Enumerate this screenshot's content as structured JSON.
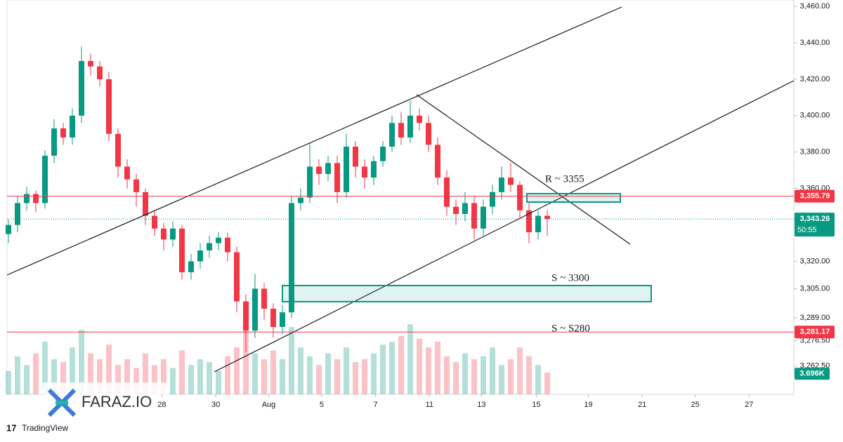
{
  "chart_data": {
    "type": "candlestick",
    "xlim": [
      0,
      86
    ],
    "xticks": [
      {
        "value": 16.8,
        "label": "28"
      },
      {
        "value": 22.7,
        "label": "30"
      },
      {
        "value": 28.5,
        "label": "Aug"
      },
      {
        "value": 34.3,
        "label": "5"
      },
      {
        "value": 40.2,
        "label": "7"
      },
      {
        "value": 46.1,
        "label": "11"
      },
      {
        "value": 51.8,
        "label": "13"
      },
      {
        "value": 57.8,
        "label": "15"
      },
      {
        "value": 63.5,
        "label": "19"
      },
      {
        "value": 69.4,
        "label": "21"
      },
      {
        "value": 75.2,
        "label": "25"
      },
      {
        "value": 81.1,
        "label": "27"
      }
    ],
    "ylim": [
      3247,
      3463.5
    ],
    "yticks": [
      {
        "value": 3460,
        "label": "3,460.00"
      },
      {
        "value": 3440,
        "label": "3,440.00"
      },
      {
        "value": 3420,
        "label": "3,420.00"
      },
      {
        "value": 3400,
        "label": "3,400.00"
      },
      {
        "value": 3380,
        "label": "3,380.00"
      },
      {
        "value": 3360,
        "label": "3,360.00"
      },
      {
        "value": 3320,
        "label": "3,320.00"
      },
      {
        "value": 3305,
        "label": "3,305.00"
      },
      {
        "value": 3289,
        "label": "3,289.00"
      },
      {
        "value": 3276.5,
        "label": "3,276.50"
      },
      {
        "value": 3262.5,
        "label": "3,262.50"
      }
    ],
    "up_color": "#089981",
    "down_color": "#f23645",
    "open": [
      3335,
      3340,
      3352,
      3357,
      3352,
      3378,
      3393,
      3388,
      3400,
      3430,
      3427,
      3420,
      3390,
      3372,
      3365,
      3358,
      3345,
      3338,
      3332,
      3338,
      3314,
      3320,
      3326,
      3330,
      3333,
      3325,
      3298,
      3282,
      3305,
      3294,
      3284,
      3292,
      3352,
      3355,
      3372,
      3368,
      3374,
      3358,
      3383,
      3372,
      3366,
      3375,
      3383,
      3396,
      3388,
      3400,
      3396,
      3384,
      3366,
      3350,
      3346,
      3352,
      3338,
      3350,
      3358,
      3366,
      3362,
      3348,
      3336,
      3345
    ],
    "high": [
      3343,
      3356,
      3361,
      3359,
      3381,
      3398,
      3396,
      3404,
      3438,
      3434,
      3430,
      3424,
      3393,
      3376,
      3368,
      3360,
      3348,
      3341,
      3342,
      3340,
      3324,
      3330,
      3334,
      3336,
      3336,
      3328,
      3302,
      3313,
      3308,
      3297,
      3296,
      3356,
      3360,
      3385,
      3376,
      3378,
      3378,
      3390,
      3386,
      3376,
      3378,
      3386,
      3400,
      3402,
      3408,
      3404,
      3400,
      3388,
      3370,
      3354,
      3358,
      3356,
      3354,
      3362,
      3372,
      3374,
      3364,
      3352,
      3348,
      3348
    ],
    "low": [
      3330,
      3336,
      3348,
      3347,
      3349,
      3374,
      3384,
      3384,
      3396,
      3422,
      3416,
      3386,
      3366,
      3360,
      3350,
      3340,
      3334,
      3326,
      3328,
      3310,
      3310,
      3316,
      3322,
      3326,
      3320,
      3292,
      3270,
      3278,
      3288,
      3278,
      3280,
      3289,
      3348,
      3352,
      3362,
      3364,
      3352,
      3355,
      3366,
      3360,
      3362,
      3372,
      3380,
      3384,
      3385,
      3392,
      3380,
      3362,
      3345,
      3340,
      3342,
      3332,
      3334,
      3346,
      3354,
      3358,
      3344,
      3330,
      3332,
      3334
    ],
    "close": [
      3340,
      3352,
      3357,
      3352,
      3378,
      3393,
      3388,
      3400,
      3430,
      3427,
      3420,
      3390,
      3372,
      3365,
      3358,
      3345,
      3338,
      3332,
      3338,
      3314,
      3320,
      3326,
      3330,
      3333,
      3325,
      3298,
      3282,
      3305,
      3294,
      3284,
      3292,
      3352,
      3355,
      3372,
      3368,
      3374,
      3358,
      3383,
      3372,
      3366,
      3375,
      3383,
      3396,
      3388,
      3400,
      3396,
      3384,
      3366,
      3350,
      3346,
      3352,
      3338,
      3350,
      3358,
      3366,
      3362,
      3348,
      3336,
      3345,
      3343.26
    ],
    "volume": [
      4000,
      6500,
      5000,
      7000,
      9000,
      6000,
      5500,
      8000,
      11000,
      7000,
      6000,
      8500,
      5000,
      6000,
      4500,
      7000,
      5000,
      6000,
      4500,
      7500,
      5000,
      6000,
      5500,
      4000,
      6500,
      8000,
      11000,
      7000,
      6000,
      7500,
      6000,
      11500,
      8000,
      6500,
      5000,
      7000,
      6000,
      8000,
      5500,
      6000,
      7000,
      8500,
      9000,
      10000,
      12000,
      9500,
      8000,
      9000,
      6500,
      5500,
      7000,
      6000,
      6500,
      8000,
      5000,
      6000,
      8000,
      6500,
      5000,
      3696
    ],
    "price_lines": [
      {
        "value": 3355.79,
        "label": "3,355.79",
        "color": "#f23645"
      },
      {
        "value": 3281.17,
        "label": "3,281.17",
        "color": "#f23645"
      }
    ],
    "current_price": {
      "value": 3343.26,
      "label": "3,343.26",
      "countdown": "50:55",
      "color": "#089981"
    },
    "volume_label": {
      "value": 3696,
      "label": "3.696K"
    },
    "annotations": [
      "R ~ 3355",
      "S ~ 3300",
      "S ~ S280"
    ],
    "watermark": "FARAZ.IO",
    "footer": "TradingView"
  }
}
